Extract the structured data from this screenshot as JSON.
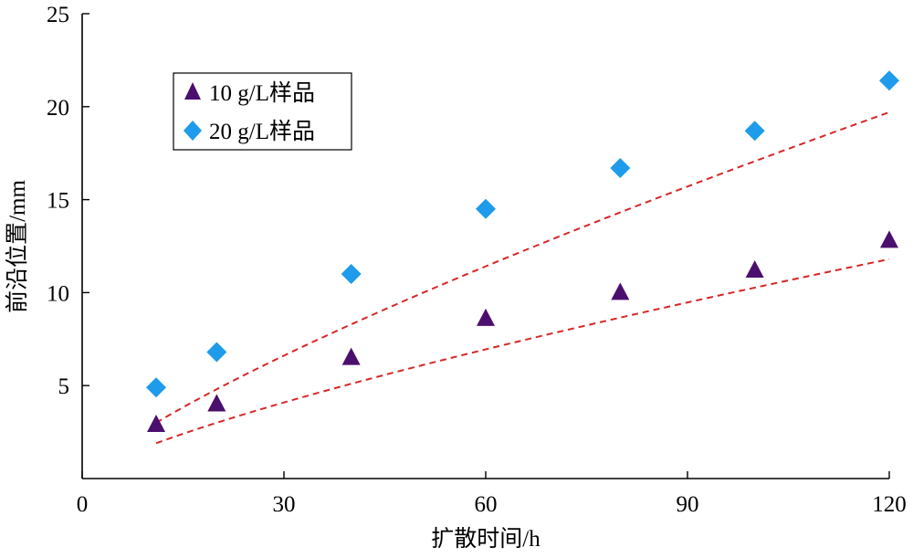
{
  "chart_data": {
    "type": "scatter",
    "xlabel": "扩散时间/h",
    "ylabel": "前沿位置/mm",
    "xlim": [
      0,
      120
    ],
    "ylim": [
      0,
      25
    ],
    "xticks": [
      "0",
      "30",
      "60",
      "90",
      "120"
    ],
    "yticks": [
      "5",
      "10",
      "15",
      "20",
      "25"
    ],
    "legend_position": "top-left",
    "grid": false,
    "series": [
      {
        "name": "10 g/L样品",
        "marker": "triangle",
        "color": "#4B0F6E",
        "x": [
          11,
          20,
          40,
          60,
          80,
          100,
          120
        ],
        "y": [
          2.9,
          4.0,
          6.5,
          8.6,
          10.0,
          11.2,
          12.8
        ],
        "fit": {
          "type": "power",
          "color": "#D62728",
          "x": [
            11,
            120
          ],
          "y": [
            1.9,
            11.8
          ]
        }
      },
      {
        "name": "20 g/L样品",
        "marker": "diamond",
        "color": "#1E9BEA",
        "x": [
          11,
          20,
          40,
          60,
          80,
          100,
          120
        ],
        "y": [
          4.9,
          6.8,
          11.0,
          14.5,
          16.7,
          18.7,
          21.4
        ],
        "fit": {
          "type": "power",
          "color": "#D62728",
          "x": [
            11,
            120
          ],
          "y": [
            3.0,
            19.7
          ]
        }
      }
    ]
  }
}
